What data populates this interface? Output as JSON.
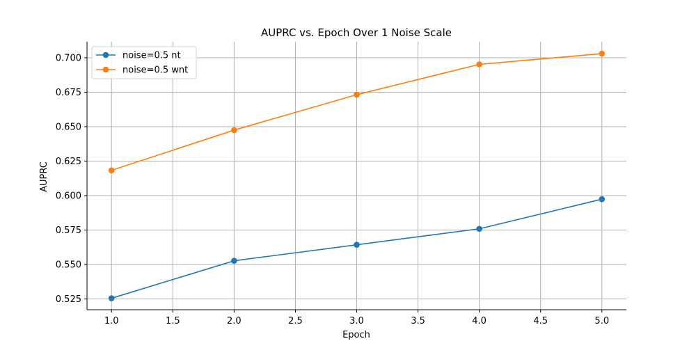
{
  "chart_data": {
    "type": "line",
    "title": "AUPRC vs. Epoch Over 1 Noise Scale",
    "xlabel": "Epoch",
    "ylabel": "AUPRC",
    "xlim": [
      0.8,
      5.2
    ],
    "ylim": [
      0.5172,
      0.7116
    ],
    "x_ticks": [
      1.0,
      1.5,
      2.0,
      2.5,
      3.0,
      3.5,
      4.0,
      4.5,
      5.0
    ],
    "x_tick_labels": [
      "1.0",
      "1.5",
      "2.0",
      "2.5",
      "3.0",
      "3.5",
      "4.0",
      "4.5",
      "5.0"
    ],
    "y_ticks": [
      0.525,
      0.55,
      0.575,
      0.6,
      0.625,
      0.65,
      0.675,
      0.7
    ],
    "y_tick_labels": [
      "0.525",
      "0.550",
      "0.575",
      "0.600",
      "0.625",
      "0.650",
      "0.675",
      "0.700"
    ],
    "grid": true,
    "legend_position": "top-left",
    "x": [
      1,
      2,
      3,
      4,
      5
    ],
    "series": [
      {
        "name": "noise=0.5 nt",
        "color": "#1f77b4",
        "values": [
          0.5255,
          0.5527,
          0.5643,
          0.5759,
          0.5974
        ]
      },
      {
        "name": "noise=0.5 wnt",
        "color": "#ff7f0e",
        "values": [
          0.6183,
          0.6475,
          0.6732,
          0.6952,
          0.703
        ]
      }
    ]
  }
}
